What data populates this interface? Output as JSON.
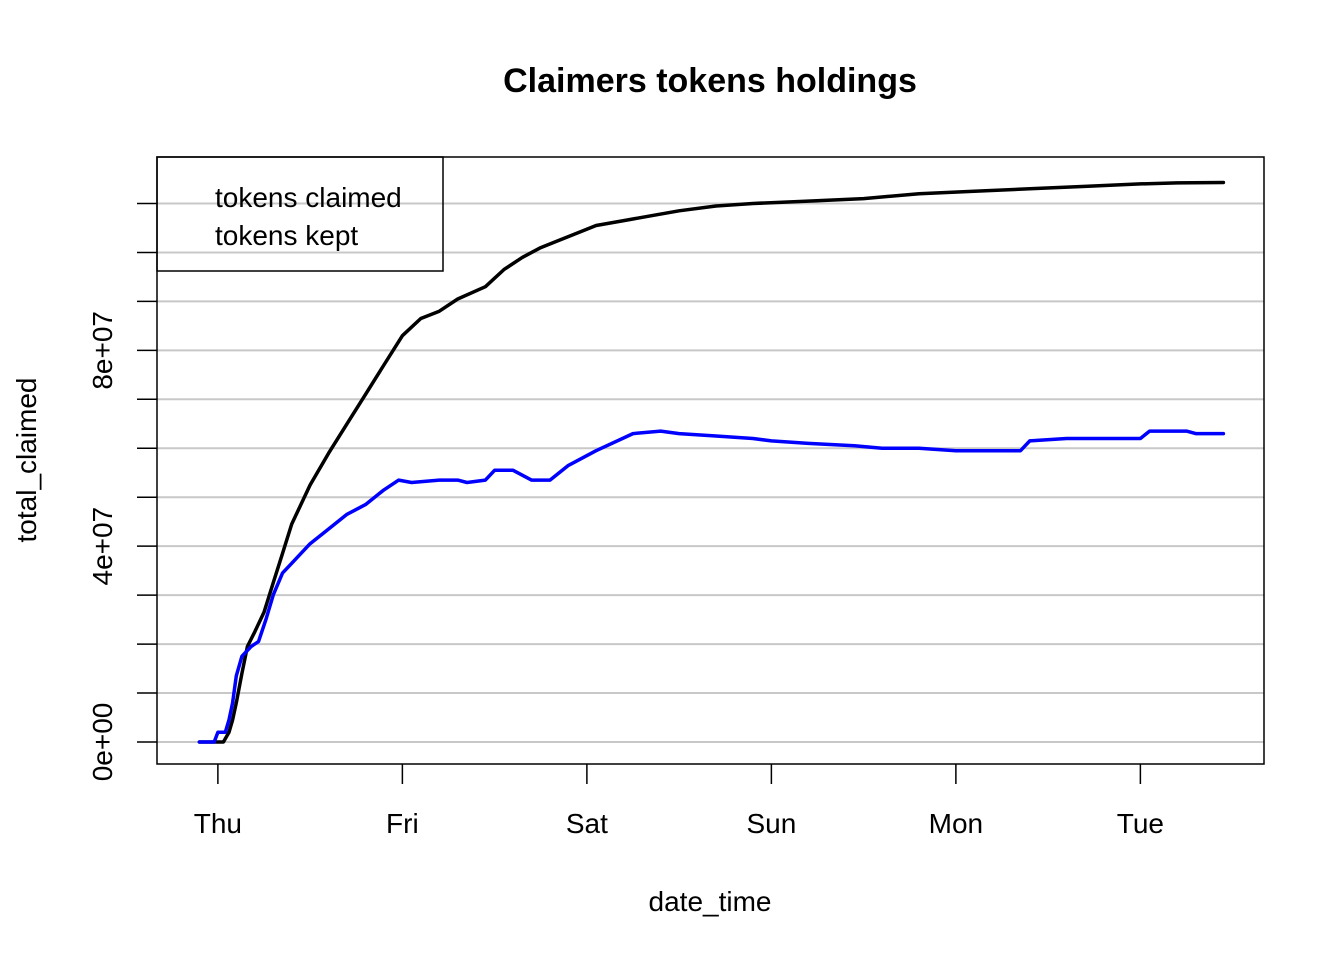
{
  "chart_data": {
    "type": "line",
    "title": "Claimers tokens holdings",
    "xlabel": "date_time",
    "ylabel": "total_claimed",
    "x_ticks": [
      "Thu",
      "Fri",
      "Sat",
      "Sun",
      "Mon",
      "Tue"
    ],
    "xlim": [
      -0.33,
      5.67
    ],
    "y_ticks": [
      0,
      40000000,
      80000000
    ],
    "y_tick_labels": [
      "0e+00",
      "4e+07",
      "8e+07"
    ],
    "ylim": [
      -4500000,
      119500000
    ],
    "grid": {
      "y": true,
      "y_step": 10000000,
      "x": false
    },
    "legend": {
      "position": "top-left",
      "framed": true
    },
    "series": [
      {
        "name": "tokens claimed",
        "color": "#000000",
        "x": [
          -0.1,
          0.03,
          0.06,
          0.08,
          0.1,
          0.13,
          0.16,
          0.2,
          0.25,
          0.3,
          0.35,
          0.4,
          0.5,
          0.6,
          0.7,
          0.8,
          0.85,
          0.9,
          1.0,
          1.1,
          1.2,
          1.3,
          1.45,
          1.55,
          1.65,
          1.75,
          1.85,
          1.95,
          2.05,
          2.2,
          2.35,
          2.5,
          2.7,
          2.9,
          3.2,
          3.5,
          3.8,
          4.1,
          4.4,
          4.7,
          5.0,
          5.2,
          5.45
        ],
        "y": [
          0,
          0,
          2000000,
          4500000,
          8000000,
          14000000,
          19500000,
          22500000,
          26500000,
          32500000,
          38500000,
          44500000,
          52500000,
          59000000,
          65000000,
          71000000,
          74000000,
          77000000,
          83000000,
          86500000,
          88000000,
          90500000,
          93000000,
          96500000,
          99000000,
          101000000,
          102500000,
          104000000,
          105500000,
          106500000,
          107500000,
          108500000,
          109500000,
          110000000,
          110500000,
          111000000,
          112000000,
          112500000,
          113000000,
          113500000,
          114000000,
          114200000,
          114300000
        ]
      },
      {
        "name": "tokens kept",
        "color": "#0000ff",
        "x": [
          -0.1,
          -0.02,
          0.0,
          0.04,
          0.06,
          0.08,
          0.1,
          0.13,
          0.18,
          0.22,
          0.26,
          0.3,
          0.35,
          0.4,
          0.5,
          0.6,
          0.7,
          0.8,
          0.9,
          0.98,
          1.05,
          1.2,
          1.3,
          1.35,
          1.45,
          1.5,
          1.6,
          1.7,
          1.75,
          1.8,
          1.9,
          2.05,
          2.25,
          2.4,
          2.5,
          2.7,
          2.9,
          3.0,
          3.2,
          3.45,
          3.6,
          3.8,
          4.0,
          4.2,
          4.35,
          4.4,
          4.6,
          4.8,
          5.0,
          5.05,
          5.25,
          5.3,
          5.45
        ],
        "y": [
          0,
          0,
          2000000,
          2000000,
          4500000,
          8000000,
          13500000,
          17500000,
          19500000,
          20500000,
          25000000,
          30000000,
          34500000,
          36500000,
          40500000,
          43500000,
          46500000,
          48500000,
          51500000,
          53500000,
          53000000,
          53500000,
          53500000,
          53000000,
          53500000,
          55500000,
          55500000,
          53500000,
          53500000,
          53500000,
          56500000,
          59500000,
          63000000,
          63500000,
          63000000,
          62500000,
          62000000,
          61500000,
          61000000,
          60500000,
          60000000,
          60000000,
          59500000,
          59500000,
          59500000,
          61500000,
          62000000,
          62000000,
          62000000,
          63500000,
          63500000,
          63000000,
          63000000
        ]
      }
    ]
  }
}
